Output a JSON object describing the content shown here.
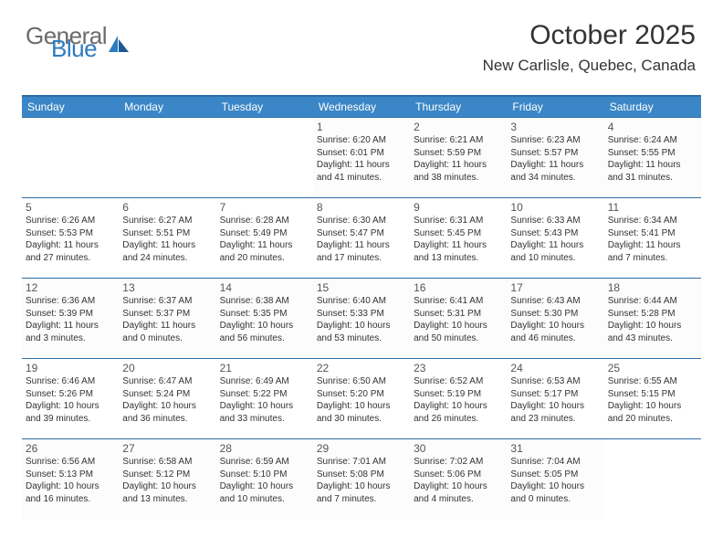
{
  "logo": {
    "word1": "General",
    "word2": "Blue",
    "word1_color": "#6b6b6b",
    "word2_color": "#2d7bc0",
    "sail_color": "#2d7bc0"
  },
  "header": {
    "month_title": "October 2025",
    "location": "New Carlisle, Quebec, Canada"
  },
  "style": {
    "header_bg": "#3b86c6",
    "header_text": "#ffffff",
    "row_border": "#2d6ea5",
    "daynum_color": "#555555",
    "detail_color": "#333333",
    "detail_fontsize": 10,
    "daynum_fontsize": 12,
    "th_fontsize": 12
  },
  "day_names": [
    "Sunday",
    "Monday",
    "Tuesday",
    "Wednesday",
    "Thursday",
    "Friday",
    "Saturday"
  ],
  "weeks": [
    [
      null,
      null,
      null,
      {
        "n": "1",
        "sr": "6:20 AM",
        "ss": "6:01 PM",
        "dl": "11 hours and 41 minutes."
      },
      {
        "n": "2",
        "sr": "6:21 AM",
        "ss": "5:59 PM",
        "dl": "11 hours and 38 minutes."
      },
      {
        "n": "3",
        "sr": "6:23 AM",
        "ss": "5:57 PM",
        "dl": "11 hours and 34 minutes."
      },
      {
        "n": "4",
        "sr": "6:24 AM",
        "ss": "5:55 PM",
        "dl": "11 hours and 31 minutes."
      }
    ],
    [
      {
        "n": "5",
        "sr": "6:26 AM",
        "ss": "5:53 PM",
        "dl": "11 hours and 27 minutes."
      },
      {
        "n": "6",
        "sr": "6:27 AM",
        "ss": "5:51 PM",
        "dl": "11 hours and 24 minutes."
      },
      {
        "n": "7",
        "sr": "6:28 AM",
        "ss": "5:49 PM",
        "dl": "11 hours and 20 minutes."
      },
      {
        "n": "8",
        "sr": "6:30 AM",
        "ss": "5:47 PM",
        "dl": "11 hours and 17 minutes."
      },
      {
        "n": "9",
        "sr": "6:31 AM",
        "ss": "5:45 PM",
        "dl": "11 hours and 13 minutes."
      },
      {
        "n": "10",
        "sr": "6:33 AM",
        "ss": "5:43 PM",
        "dl": "11 hours and 10 minutes."
      },
      {
        "n": "11",
        "sr": "6:34 AM",
        "ss": "5:41 PM",
        "dl": "11 hours and 7 minutes."
      }
    ],
    [
      {
        "n": "12",
        "sr": "6:36 AM",
        "ss": "5:39 PM",
        "dl": "11 hours and 3 minutes."
      },
      {
        "n": "13",
        "sr": "6:37 AM",
        "ss": "5:37 PM",
        "dl": "11 hours and 0 minutes."
      },
      {
        "n": "14",
        "sr": "6:38 AM",
        "ss": "5:35 PM",
        "dl": "10 hours and 56 minutes."
      },
      {
        "n": "15",
        "sr": "6:40 AM",
        "ss": "5:33 PM",
        "dl": "10 hours and 53 minutes."
      },
      {
        "n": "16",
        "sr": "6:41 AM",
        "ss": "5:31 PM",
        "dl": "10 hours and 50 minutes."
      },
      {
        "n": "17",
        "sr": "6:43 AM",
        "ss": "5:30 PM",
        "dl": "10 hours and 46 minutes."
      },
      {
        "n": "18",
        "sr": "6:44 AM",
        "ss": "5:28 PM",
        "dl": "10 hours and 43 minutes."
      }
    ],
    [
      {
        "n": "19",
        "sr": "6:46 AM",
        "ss": "5:26 PM",
        "dl": "10 hours and 39 minutes."
      },
      {
        "n": "20",
        "sr": "6:47 AM",
        "ss": "5:24 PM",
        "dl": "10 hours and 36 minutes."
      },
      {
        "n": "21",
        "sr": "6:49 AM",
        "ss": "5:22 PM",
        "dl": "10 hours and 33 minutes."
      },
      {
        "n": "22",
        "sr": "6:50 AM",
        "ss": "5:20 PM",
        "dl": "10 hours and 30 minutes."
      },
      {
        "n": "23",
        "sr": "6:52 AM",
        "ss": "5:19 PM",
        "dl": "10 hours and 26 minutes."
      },
      {
        "n": "24",
        "sr": "6:53 AM",
        "ss": "5:17 PM",
        "dl": "10 hours and 23 minutes."
      },
      {
        "n": "25",
        "sr": "6:55 AM",
        "ss": "5:15 PM",
        "dl": "10 hours and 20 minutes."
      }
    ],
    [
      {
        "n": "26",
        "sr": "6:56 AM",
        "ss": "5:13 PM",
        "dl": "10 hours and 16 minutes."
      },
      {
        "n": "27",
        "sr": "6:58 AM",
        "ss": "5:12 PM",
        "dl": "10 hours and 13 minutes."
      },
      {
        "n": "28",
        "sr": "6:59 AM",
        "ss": "5:10 PM",
        "dl": "10 hours and 10 minutes."
      },
      {
        "n": "29",
        "sr": "7:01 AM",
        "ss": "5:08 PM",
        "dl": "10 hours and 7 minutes."
      },
      {
        "n": "30",
        "sr": "7:02 AM",
        "ss": "5:06 PM",
        "dl": "10 hours and 4 minutes."
      },
      {
        "n": "31",
        "sr": "7:04 AM",
        "ss": "5:05 PM",
        "dl": "10 hours and 0 minutes."
      },
      null
    ]
  ],
  "labels": {
    "sunrise": "Sunrise:",
    "sunset": "Sunset:",
    "daylight": "Daylight:"
  }
}
